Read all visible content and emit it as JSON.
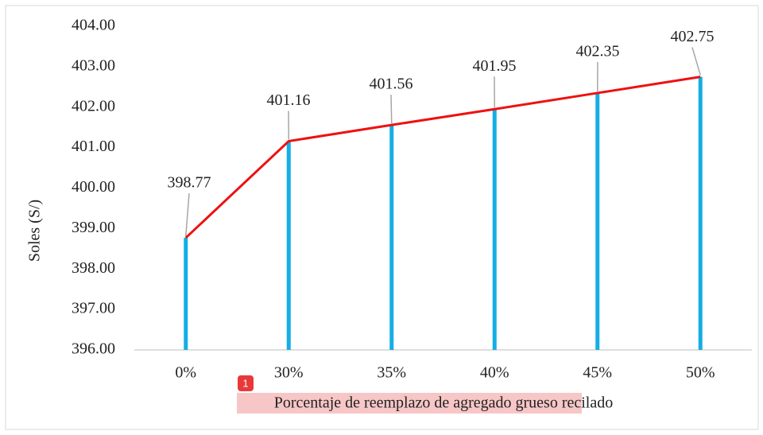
{
  "chart_data": {
    "type": "bar_line",
    "ylabel": "Soles (S/)",
    "xlabel": "Porcentaje de reemplazo de agregado grueso recilado",
    "annotation": "1",
    "categories": [
      "0%",
      "30%",
      "35%",
      "40%",
      "45%",
      "50%"
    ],
    "values": [
      398.77,
      401.16,
      401.56,
      401.95,
      402.35,
      402.75
    ],
    "bar_color": "#13aee6",
    "line_color": "#ee1111",
    "ylim": [
      396,
      404
    ],
    "yticks": [
      {
        "value": 396,
        "label": "396.00"
      },
      {
        "value": 397,
        "label": "397.00"
      },
      {
        "value": 398,
        "label": "398.00"
      },
      {
        "value": 399,
        "label": "399.00"
      },
      {
        "value": 400,
        "label": "400.00"
      },
      {
        "value": 401,
        "label": "401.00"
      },
      {
        "value": 402,
        "label": "402.00"
      },
      {
        "value": 403,
        "label": "403.00"
      },
      {
        "value": 404,
        "label": "404.00"
      }
    ],
    "grid": false
  }
}
